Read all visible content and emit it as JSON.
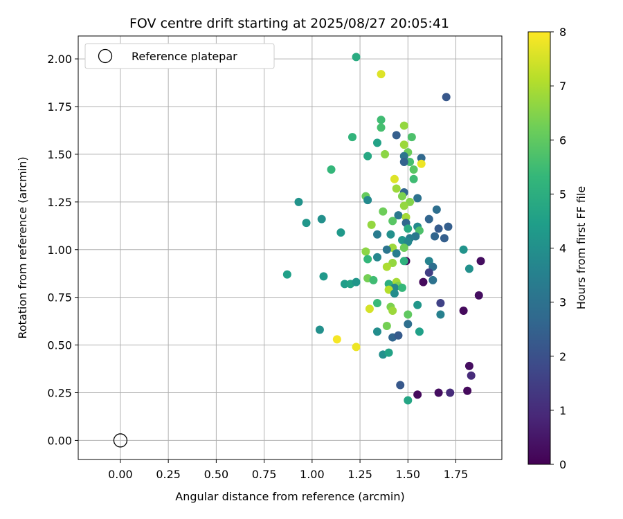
{
  "chart_data": {
    "type": "scatter",
    "title": "FOV centre drift starting at 2025/08/27 20:05:41",
    "xlabel": "Angular distance from reference (arcmin)",
    "ylabel": "Rotation from reference (arcmin)",
    "xlim": [
      -0.22,
      1.99
    ],
    "ylim": [
      -0.1,
      2.12
    ],
    "xticks": [
      "0.00",
      "0.25",
      "0.50",
      "0.75",
      "1.00",
      "1.25",
      "1.50",
      "1.75"
    ],
    "yticks": [
      "0.00",
      "0.25",
      "0.50",
      "0.75",
      "1.00",
      "1.25",
      "1.50",
      "1.75",
      "2.00"
    ],
    "grid": true,
    "legend": {
      "position": "top-left",
      "entries": [
        "Reference platepar"
      ]
    },
    "reference_point": {
      "x": 0.0,
      "y": 0.0,
      "marker": "open-circle"
    },
    "colorbar": {
      "label": "Hours from first FF file",
      "range": [
        0,
        8
      ],
      "ticks": [
        "0",
        "1",
        "2",
        "3",
        "4",
        "5",
        "6",
        "7",
        "8"
      ],
      "colormap": "viridis",
      "colors": [
        "#440154",
        "#482878",
        "#3e4989",
        "#31688e",
        "#26828e",
        "#1f9e89",
        "#35b779",
        "#6ece58",
        "#b5de2b",
        "#fde725"
      ]
    },
    "points": [
      {
        "x": 1.23,
        "y": 2.01,
        "h": 4.9
      },
      {
        "x": 1.36,
        "y": 1.92,
        "h": 7.6
      },
      {
        "x": 1.7,
        "y": 1.8,
        "h": 2.2
      },
      {
        "x": 1.36,
        "y": 1.68,
        "h": 5.5
      },
      {
        "x": 1.48,
        "y": 1.65,
        "h": 6.7
      },
      {
        "x": 1.36,
        "y": 1.64,
        "h": 5.6
      },
      {
        "x": 1.44,
        "y": 1.6,
        "h": 2.4
      },
      {
        "x": 1.21,
        "y": 1.59,
        "h": 5.2
      },
      {
        "x": 1.52,
        "y": 1.59,
        "h": 5.7
      },
      {
        "x": 1.34,
        "y": 1.56,
        "h": 4.6
      },
      {
        "x": 1.48,
        "y": 1.55,
        "h": 6.8
      },
      {
        "x": 1.5,
        "y": 1.51,
        "h": 6.2
      },
      {
        "x": 1.29,
        "y": 1.49,
        "h": 4.8
      },
      {
        "x": 1.38,
        "y": 1.5,
        "h": 6.6
      },
      {
        "x": 1.48,
        "y": 1.49,
        "h": 3.1
      },
      {
        "x": 1.57,
        "y": 1.48,
        "h": 2.7
      },
      {
        "x": 1.51,
        "y": 1.46,
        "h": 5.6
      },
      {
        "x": 1.48,
        "y": 1.46,
        "h": 2.5
      },
      {
        "x": 1.57,
        "y": 1.45,
        "h": 7.8
      },
      {
        "x": 1.1,
        "y": 1.42,
        "h": 5.3
      },
      {
        "x": 1.53,
        "y": 1.42,
        "h": 5.9
      },
      {
        "x": 1.43,
        "y": 1.37,
        "h": 7.6
      },
      {
        "x": 1.53,
        "y": 1.37,
        "h": 5.5
      },
      {
        "x": 1.44,
        "y": 1.32,
        "h": 6.8
      },
      {
        "x": 1.48,
        "y": 1.3,
        "h": 2.6
      },
      {
        "x": 1.47,
        "y": 1.28,
        "h": 6.4
      },
      {
        "x": 1.28,
        "y": 1.28,
        "h": 6.1
      },
      {
        "x": 1.55,
        "y": 1.27,
        "h": 3.0
      },
      {
        "x": 0.93,
        "y": 1.25,
        "h": 4.1
      },
      {
        "x": 1.29,
        "y": 1.26,
        "h": 3.8
      },
      {
        "x": 1.51,
        "y": 1.25,
        "h": 6.5
      },
      {
        "x": 1.48,
        "y": 1.23,
        "h": 6.7
      },
      {
        "x": 1.65,
        "y": 1.21,
        "h": 2.9
      },
      {
        "x": 1.37,
        "y": 1.2,
        "h": 6.2
      },
      {
        "x": 1.45,
        "y": 1.18,
        "h": 3.2
      },
      {
        "x": 1.61,
        "y": 1.16,
        "h": 2.6
      },
      {
        "x": 1.05,
        "y": 1.16,
        "h": 4.0
      },
      {
        "x": 1.49,
        "y": 1.17,
        "h": 6.9
      },
      {
        "x": 1.42,
        "y": 1.15,
        "h": 5.9
      },
      {
        "x": 0.97,
        "y": 1.14,
        "h": 4.2
      },
      {
        "x": 1.31,
        "y": 1.13,
        "h": 6.7
      },
      {
        "x": 1.49,
        "y": 1.14,
        "h": 2.6
      },
      {
        "x": 1.71,
        "y": 1.12,
        "h": 2.4
      },
      {
        "x": 1.55,
        "y": 1.12,
        "h": 3.8
      },
      {
        "x": 1.56,
        "y": 1.1,
        "h": 5.7
      },
      {
        "x": 1.66,
        "y": 1.11,
        "h": 2.3
      },
      {
        "x": 1.5,
        "y": 1.11,
        "h": 4.9
      },
      {
        "x": 1.15,
        "y": 1.09,
        "h": 4.3
      },
      {
        "x": 1.34,
        "y": 1.08,
        "h": 3.3
      },
      {
        "x": 1.41,
        "y": 1.08,
        "h": 4.0
      },
      {
        "x": 1.54,
        "y": 1.07,
        "h": 3.2
      },
      {
        "x": 1.51,
        "y": 1.06,
        "h": 3.4
      },
      {
        "x": 1.64,
        "y": 1.07,
        "h": 2.6
      },
      {
        "x": 1.69,
        "y": 1.06,
        "h": 2.4
      },
      {
        "x": 1.47,
        "y": 1.05,
        "h": 4.2
      },
      {
        "x": 1.5,
        "y": 1.04,
        "h": 3.7
      },
      {
        "x": 1.42,
        "y": 1.01,
        "h": 6.8
      },
      {
        "x": 1.48,
        "y": 1.01,
        "h": 6.2
      },
      {
        "x": 1.28,
        "y": 0.99,
        "h": 6.6
      },
      {
        "x": 1.39,
        "y": 1.0,
        "h": 3.1
      },
      {
        "x": 1.44,
        "y": 0.98,
        "h": 3.4
      },
      {
        "x": 1.79,
        "y": 1.0,
        "h": 4.1
      },
      {
        "x": 1.29,
        "y": 0.95,
        "h": 5.3
      },
      {
        "x": 1.34,
        "y": 0.96,
        "h": 3.7
      },
      {
        "x": 1.49,
        "y": 0.94,
        "h": 0.2
      },
      {
        "x": 1.48,
        "y": 0.94,
        "h": 5.1
      },
      {
        "x": 1.42,
        "y": 0.93,
        "h": 6.7
      },
      {
        "x": 1.61,
        "y": 0.94,
        "h": 3.6
      },
      {
        "x": 1.88,
        "y": 0.94,
        "h": 0.3
      },
      {
        "x": 1.39,
        "y": 0.91,
        "h": 7.0
      },
      {
        "x": 1.63,
        "y": 0.91,
        "h": 2.9
      },
      {
        "x": 1.82,
        "y": 0.9,
        "h": 4.0
      },
      {
        "x": 1.61,
        "y": 0.88,
        "h": 1.5
      },
      {
        "x": 0.87,
        "y": 0.87,
        "h": 4.5
      },
      {
        "x": 1.06,
        "y": 0.86,
        "h": 4.3
      },
      {
        "x": 1.29,
        "y": 0.85,
        "h": 6.3
      },
      {
        "x": 1.32,
        "y": 0.84,
        "h": 5.5
      },
      {
        "x": 1.17,
        "y": 0.82,
        "h": 4.4
      },
      {
        "x": 1.2,
        "y": 0.82,
        "h": 4.6
      },
      {
        "x": 1.23,
        "y": 0.83,
        "h": 4.2
      },
      {
        "x": 1.44,
        "y": 0.83,
        "h": 6.9
      },
      {
        "x": 1.58,
        "y": 0.83,
        "h": 0.2
      },
      {
        "x": 1.63,
        "y": 0.84,
        "h": 3.0
      },
      {
        "x": 1.4,
        "y": 0.82,
        "h": 5.0
      },
      {
        "x": 1.45,
        "y": 0.81,
        "h": 6.4
      },
      {
        "x": 1.43,
        "y": 0.8,
        "h": 3.7
      },
      {
        "x": 1.47,
        "y": 0.8,
        "h": 5.3
      },
      {
        "x": 1.4,
        "y": 0.79,
        "h": 7.1
      },
      {
        "x": 1.87,
        "y": 0.76,
        "h": 0.3
      },
      {
        "x": 1.43,
        "y": 0.77,
        "h": 3.9
      },
      {
        "x": 1.34,
        "y": 0.72,
        "h": 5.4
      },
      {
        "x": 1.41,
        "y": 0.7,
        "h": 6.4
      },
      {
        "x": 1.55,
        "y": 0.71,
        "h": 4.2
      },
      {
        "x": 1.67,
        "y": 0.72,
        "h": 1.6
      },
      {
        "x": 1.3,
        "y": 0.69,
        "h": 7.5
      },
      {
        "x": 1.42,
        "y": 0.68,
        "h": 6.8
      },
      {
        "x": 1.79,
        "y": 0.68,
        "h": 0.2
      },
      {
        "x": 1.5,
        "y": 0.66,
        "h": 6.0
      },
      {
        "x": 1.67,
        "y": 0.66,
        "h": 3.5
      },
      {
        "x": 1.5,
        "y": 0.61,
        "h": 2.9
      },
      {
        "x": 1.39,
        "y": 0.6,
        "h": 6.3
      },
      {
        "x": 1.04,
        "y": 0.58,
        "h": 4.0
      },
      {
        "x": 1.34,
        "y": 0.57,
        "h": 3.9
      },
      {
        "x": 1.56,
        "y": 0.57,
        "h": 4.5
      },
      {
        "x": 1.42,
        "y": 0.54,
        "h": 2.6
      },
      {
        "x": 1.45,
        "y": 0.55,
        "h": 2.3
      },
      {
        "x": 1.13,
        "y": 0.53,
        "h": 7.9
      },
      {
        "x": 1.23,
        "y": 0.49,
        "h": 7.8
      },
      {
        "x": 1.37,
        "y": 0.45,
        "h": 4.0
      },
      {
        "x": 1.4,
        "y": 0.46,
        "h": 4.6
      },
      {
        "x": 1.82,
        "y": 0.39,
        "h": 0.3
      },
      {
        "x": 1.83,
        "y": 0.34,
        "h": 1.0
      },
      {
        "x": 1.46,
        "y": 0.29,
        "h": 2.2
      },
      {
        "x": 1.5,
        "y": 0.21,
        "h": 4.7
      },
      {
        "x": 1.55,
        "y": 0.24,
        "h": 0.2
      },
      {
        "x": 1.66,
        "y": 0.25,
        "h": 0.3
      },
      {
        "x": 1.72,
        "y": 0.25,
        "h": 1.0
      },
      {
        "x": 1.81,
        "y": 0.26,
        "h": 0.2
      }
    ]
  }
}
